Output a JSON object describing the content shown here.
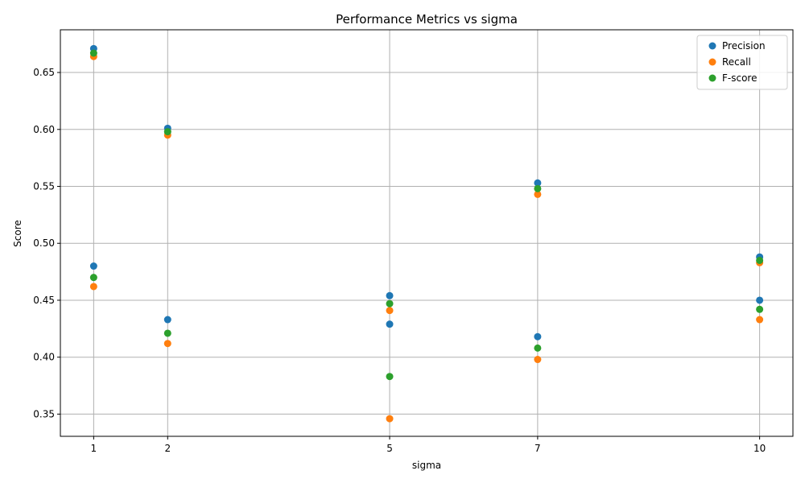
{
  "chart_data": {
    "type": "scatter",
    "title": "Performance Metrics vs sigma",
    "xlabel": "sigma",
    "ylabel": "Score",
    "xlim": [
      0.55,
      10.45
    ],
    "ylim": [
      0.3305,
      0.6875
    ],
    "xticks": [
      1,
      2,
      5,
      7,
      10
    ],
    "yticks": [
      0.35,
      0.4,
      0.45,
      0.5,
      0.55,
      0.6,
      0.65
    ],
    "ytick_labels": [
      "0.35",
      "0.40",
      "0.45",
      "0.50",
      "0.55",
      "0.60",
      "0.65"
    ],
    "grid": true,
    "legend_position": "top-right",
    "series": [
      {
        "name": "Precision",
        "color": "#1f77b4",
        "points": [
          [
            1,
            0.671
          ],
          [
            1,
            0.48
          ],
          [
            2,
            0.601
          ],
          [
            2,
            0.433
          ],
          [
            5,
            0.454
          ],
          [
            5,
            0.429
          ],
          [
            7,
            0.553
          ],
          [
            7,
            0.418
          ],
          [
            10,
            0.488
          ],
          [
            10,
            0.45
          ]
        ]
      },
      {
        "name": "Recall",
        "color": "#ff7f0e",
        "points": [
          [
            1,
            0.664
          ],
          [
            1,
            0.462
          ],
          [
            2,
            0.595
          ],
          [
            2,
            0.412
          ],
          [
            5,
            0.441
          ],
          [
            5,
            0.346
          ],
          [
            7,
            0.543
          ],
          [
            7,
            0.398
          ],
          [
            10,
            0.483
          ],
          [
            10,
            0.433
          ]
        ]
      },
      {
        "name": "F-score",
        "color": "#2ca02c",
        "points": [
          [
            1,
            0.667
          ],
          [
            1,
            0.47
          ],
          [
            2,
            0.598
          ],
          [
            2,
            0.421
          ],
          [
            5,
            0.447
          ],
          [
            5,
            0.383
          ],
          [
            7,
            0.548
          ],
          [
            7,
            0.408
          ],
          [
            10,
            0.485
          ],
          [
            10,
            0.442
          ]
        ]
      }
    ]
  }
}
